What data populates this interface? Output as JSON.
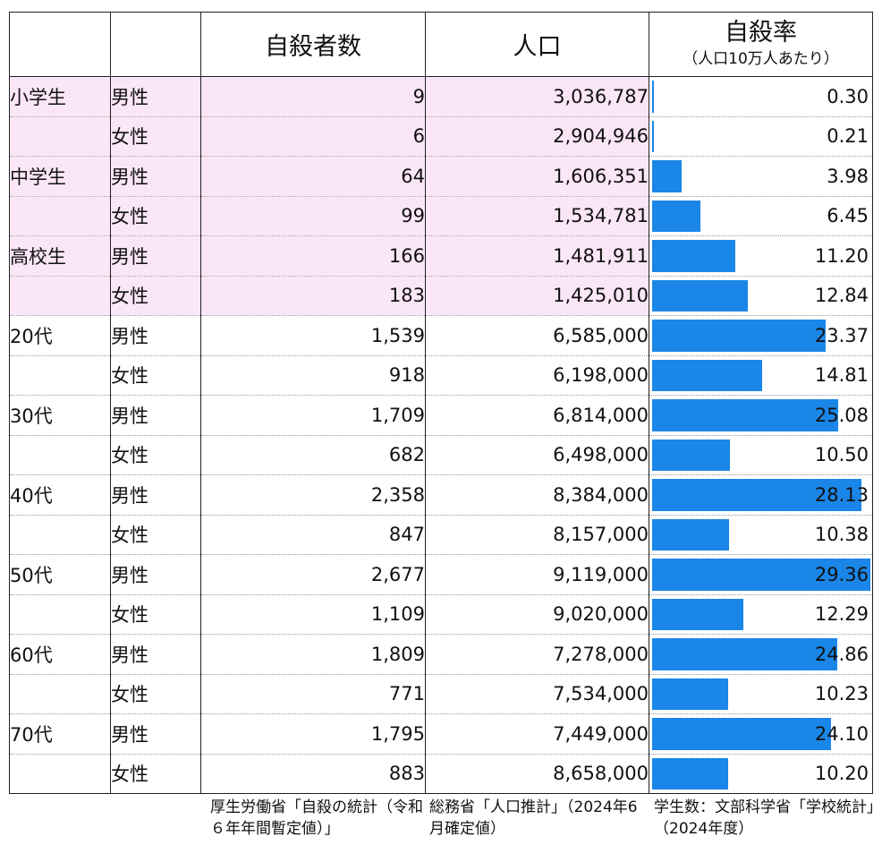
{
  "header": {
    "col_group": "",
    "col_sex": "",
    "col_suicides": "自殺者数",
    "col_population": "人口",
    "col_rate": "自殺率",
    "col_rate_note": "（人口10万人あたり）"
  },
  "rows": [
    {
      "group": "小学生",
      "sex": "男性",
      "suicides": "9",
      "population": "3,036,787",
      "rate": "0.30",
      "rate_value": 0.3,
      "student": true
    },
    {
      "group": "",
      "sex": "女性",
      "suicides": "6",
      "population": "2,904,946",
      "rate": "0.21",
      "rate_value": 0.21,
      "student": true
    },
    {
      "group": "中学生",
      "sex": "男性",
      "suicides": "64",
      "population": "1,606,351",
      "rate": "3.98",
      "rate_value": 3.98,
      "student": true
    },
    {
      "group": "",
      "sex": "女性",
      "suicides": "99",
      "population": "1,534,781",
      "rate": "6.45",
      "rate_value": 6.45,
      "student": true
    },
    {
      "group": "高校生",
      "sex": "男性",
      "suicides": "166",
      "population": "1,481,911",
      "rate": "11.20",
      "rate_value": 11.2,
      "student": true
    },
    {
      "group": "",
      "sex": "女性",
      "suicides": "183",
      "population": "1,425,010",
      "rate": "12.84",
      "rate_value": 12.84,
      "student": true
    },
    {
      "group": "20代",
      "sex": "男性",
      "suicides": "1,539",
      "population": "6,585,000",
      "rate": "23.37",
      "rate_value": 23.37,
      "student": false
    },
    {
      "group": "",
      "sex": "女性",
      "suicides": "918",
      "population": "6,198,000",
      "rate": "14.81",
      "rate_value": 14.81,
      "student": false
    },
    {
      "group": "30代",
      "sex": "男性",
      "suicides": "1,709",
      "population": "6,814,000",
      "rate": "25.08",
      "rate_value": 25.08,
      "student": false
    },
    {
      "group": "",
      "sex": "女性",
      "suicides": "682",
      "population": "6,498,000",
      "rate": "10.50",
      "rate_value": 10.5,
      "student": false
    },
    {
      "group": "40代",
      "sex": "男性",
      "suicides": "2,358",
      "population": "8,384,000",
      "rate": "28.13",
      "rate_value": 28.13,
      "student": false
    },
    {
      "group": "",
      "sex": "女性",
      "suicides": "847",
      "population": "8,157,000",
      "rate": "10.38",
      "rate_value": 10.38,
      "student": false
    },
    {
      "group": "50代",
      "sex": "男性",
      "suicides": "2,677",
      "population": "9,119,000",
      "rate": "29.36",
      "rate_value": 29.36,
      "student": false
    },
    {
      "group": "",
      "sex": "女性",
      "suicides": "1,109",
      "population": "9,020,000",
      "rate": "12.29",
      "rate_value": 12.29,
      "student": false
    },
    {
      "group": "60代",
      "sex": "男性",
      "suicides": "1,809",
      "population": "7,278,000",
      "rate": "24.86",
      "rate_value": 24.86,
      "student": false
    },
    {
      "group": "",
      "sex": "女性",
      "suicides": "771",
      "population": "7,534,000",
      "rate": "10.23",
      "rate_value": 10.23,
      "student": false
    },
    {
      "group": "70代",
      "sex": "男性",
      "suicides": "1,795",
      "population": "7,449,000",
      "rate": "24.10",
      "rate_value": 24.1,
      "student": false
    },
    {
      "group": "",
      "sex": "女性",
      "suicides": "883",
      "population": "8,658,000",
      "rate": "10.20",
      "rate_value": 10.2,
      "student": false
    }
  ],
  "rate_bar_max": 29.36,
  "colors": {
    "bar": "#1a86e8",
    "student_highlight": "#fbe6f7"
  },
  "sources": {
    "suicides": "厚生労働省「自殺の統計（令和６年年間暫定値）」",
    "population": "総務省「人口推計」（2024年6月確定値）",
    "students": "学生数：文部科学省「学校統計」（2024年度）"
  }
}
